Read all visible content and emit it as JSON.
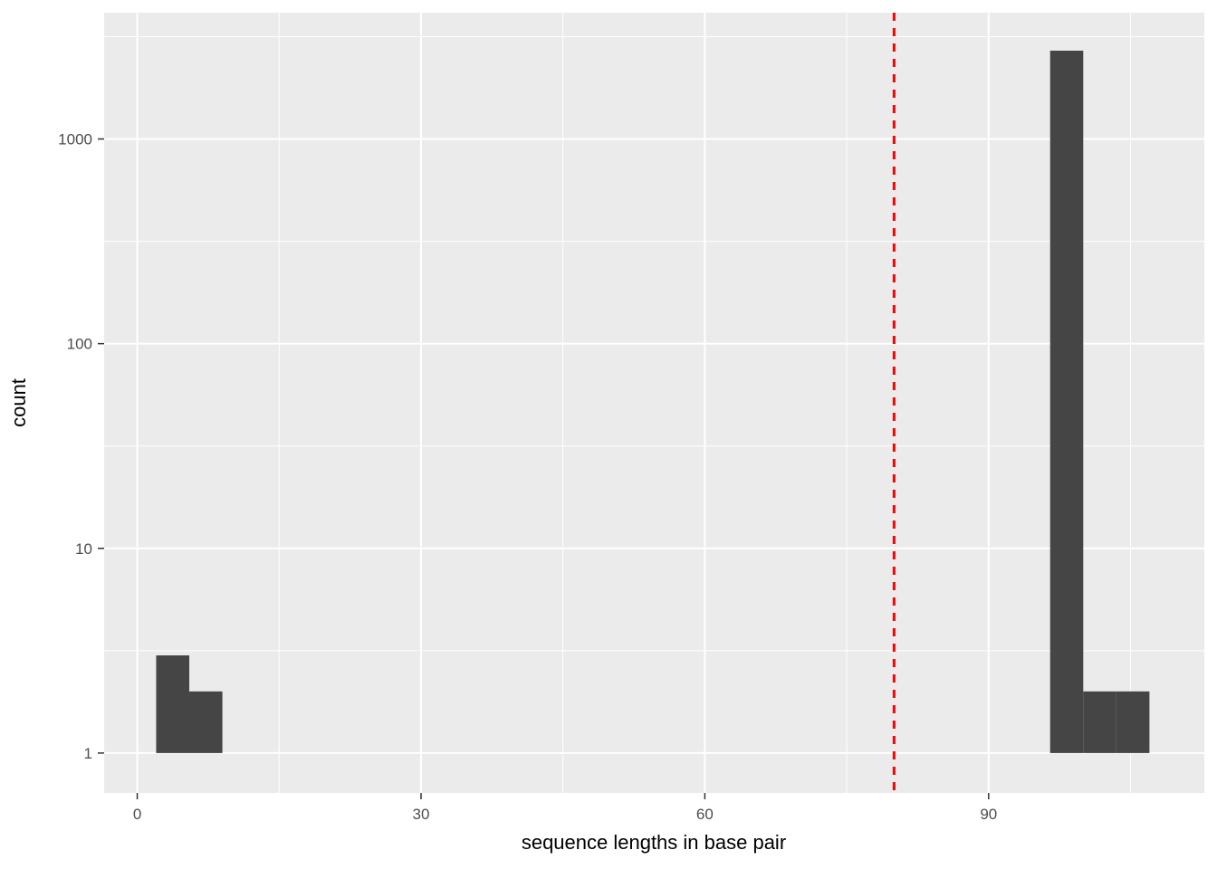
{
  "chart_data": {
    "type": "bar",
    "variant": "histogram",
    "title": "",
    "xlabel": "sequence lengths in base pair",
    "ylabel": "count",
    "y_scale": "log10",
    "x_major_ticks": [
      0,
      30,
      60,
      90
    ],
    "x_minor_ticks": [
      15,
      45,
      75,
      105
    ],
    "y_major_ticks": [
      1,
      10,
      100,
      1000
    ],
    "y_minor_ticks": [
      3.162,
      31.62,
      316.2,
      3162
    ],
    "xlim": [
      -3.5,
      112.8
    ],
    "ylim_log10": [
      -0.195,
      3.617
    ],
    "baseline_count": 1,
    "bins": [
      {
        "x0": 2,
        "x1": 5.5,
        "count": 3
      },
      {
        "x0": 5.5,
        "x1": 9,
        "count": 2
      },
      {
        "x0": 96.5,
        "x1": 100,
        "count": 2700
      },
      {
        "x0": 100,
        "x1": 103.5,
        "count": 2
      },
      {
        "x0": 103.5,
        "x1": 107,
        "count": 2
      }
    ],
    "vline": {
      "x": 80,
      "style": "dashed",
      "color": "#FF0000"
    },
    "legend": "none",
    "grid": "on",
    "colors": {
      "bar_fill": "#454545",
      "panel_bg": "#EBEBEB",
      "grid_major": "#FFFFFF",
      "grid_minor": "#FFFFFF",
      "tick_label": "#4D4D4D",
      "tick_mark": "#333333",
      "axis_title": "#000000",
      "background": "#FFFFFF"
    }
  }
}
